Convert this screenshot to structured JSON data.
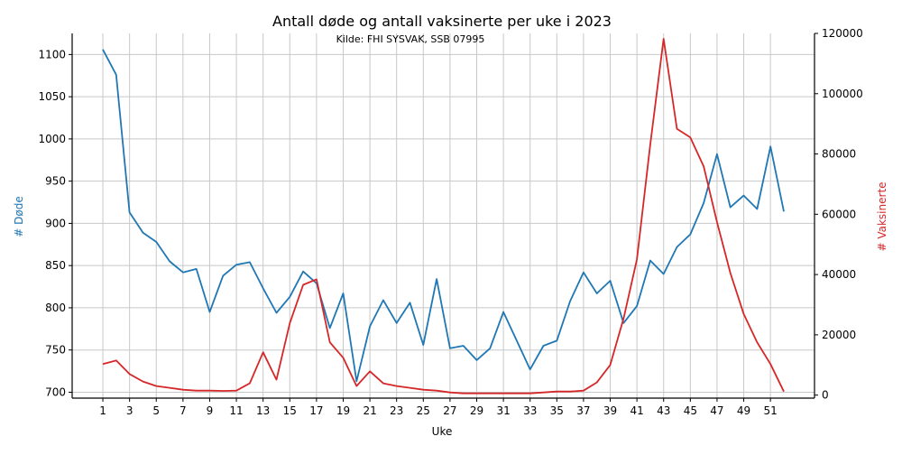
{
  "chart_data": {
    "type": "line",
    "title": "Antall døde og antall vaksinerte per uke i 2023",
    "subtitle": "Kilde: FHI SYSVAK, SSB 07995",
    "xlabel": "Uke",
    "ylabel_left": "# Døde",
    "ylabel_right": "# Vaksinerte",
    "grid": true,
    "legend": "none",
    "x": [
      1,
      2,
      3,
      4,
      5,
      6,
      7,
      8,
      9,
      10,
      11,
      12,
      13,
      14,
      15,
      16,
      17,
      18,
      19,
      20,
      21,
      22,
      23,
      24,
      25,
      26,
      27,
      28,
      29,
      30,
      31,
      32,
      33,
      34,
      35,
      36,
      37,
      38,
      39,
      40,
      41,
      42,
      43,
      44,
      45,
      46,
      47,
      48,
      49,
      50,
      51,
      52
    ],
    "x_ticks": [
      1,
      3,
      5,
      7,
      9,
      11,
      13,
      15,
      17,
      19,
      21,
      23,
      25,
      27,
      29,
      31,
      33,
      35,
      37,
      39,
      41,
      43,
      45,
      47,
      49,
      51
    ],
    "xlim": [
      -1.3,
      54.3
    ],
    "ylim_left": [
      693,
      1125
    ],
    "yticks_left": [
      700,
      750,
      800,
      850,
      900,
      950,
      1000,
      1050,
      1100
    ],
    "ylim_right": [
      -1000,
      120000
    ],
    "yticks_right": [
      0,
      20000,
      40000,
      60000,
      80000,
      100000,
      120000
    ],
    "series": [
      {
        "name": "# Døde",
        "axis": "left",
        "color": "#1f77b4",
        "values": [
          1106,
          1076,
          913,
          889,
          878,
          855,
          842,
          846,
          795,
          838,
          851,
          854,
          823,
          794,
          813,
          843,
          829,
          776,
          817,
          713,
          778,
          809,
          782,
          806,
          756,
          834,
          752,
          755,
          738,
          752,
          795,
          761,
          727,
          755,
          761,
          808,
          842,
          817,
          832,
          782,
          802,
          856,
          840,
          872,
          887,
          924,
          982,
          919,
          933,
          917,
          991,
          914
        ]
      },
      {
        "name": "# Vaksinerte",
        "axis": "right",
        "color": "#d62728",
        "values": [
          10300,
          11500,
          7000,
          4500,
          3000,
          2400,
          1800,
          1500,
          1500,
          1400,
          1500,
          3900,
          14200,
          5100,
          23900,
          36600,
          38400,
          17500,
          12400,
          3000,
          7900,
          3900,
          3000,
          2400,
          1800,
          1500,
          900,
          600,
          600,
          600,
          600,
          600,
          600,
          900,
          1200,
          1200,
          1500,
          4200,
          10000,
          25400,
          45000,
          83100,
          118200,
          88300,
          85500,
          75900,
          57400,
          40500,
          26900,
          17500,
          10300,
          1200
        ]
      }
    ]
  }
}
